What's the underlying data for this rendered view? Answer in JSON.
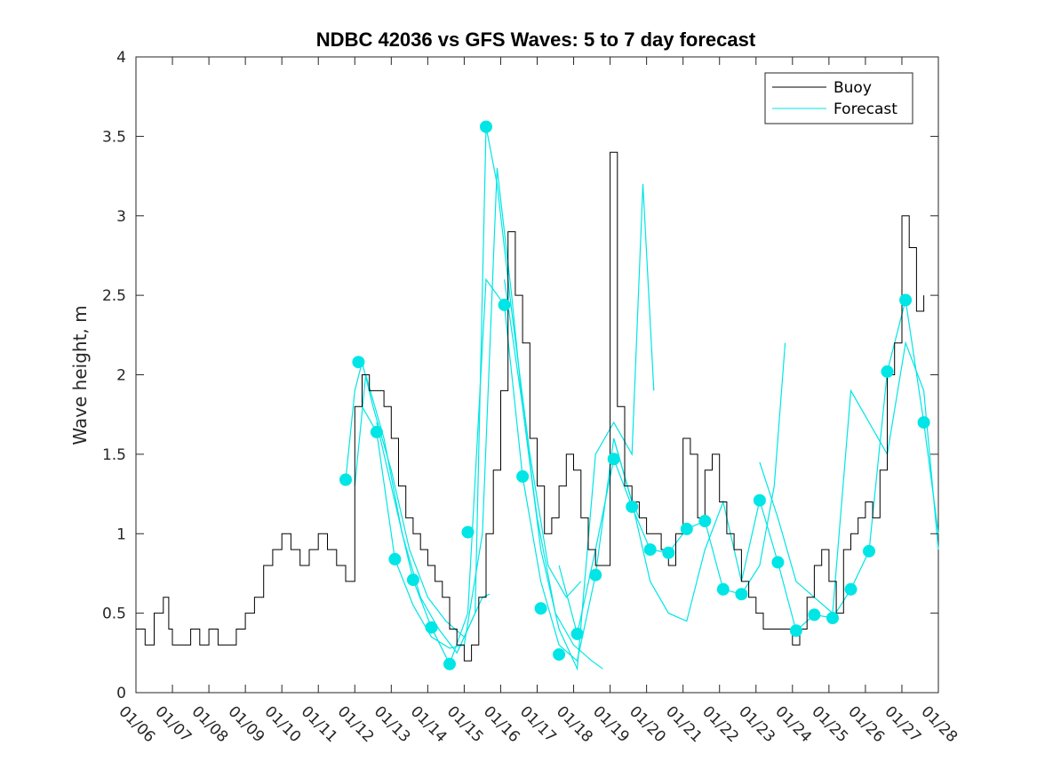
{
  "chart_data": {
    "type": "line",
    "title": "NDBC 42036 vs GFS Waves: 5 to 7 day forecast",
    "xlabel": "",
    "ylabel": "Wave height, m",
    "xlim": [
      0,
      22
    ],
    "ylim": [
      0,
      4
    ],
    "grid": false,
    "legend_position": "top-right",
    "x_tick_labels": [
      "01/06",
      "01/07",
      "01/08",
      "01/09",
      "01/10",
      "01/11",
      "01/12",
      "01/13",
      "01/14",
      "01/15",
      "01/16",
      "01/17",
      "01/18",
      "01/19",
      "01/20",
      "01/21",
      "01/22",
      "01/23",
      "01/24",
      "01/25",
      "01/26",
      "01/27",
      "01/28"
    ],
    "y_tick_labels": [
      "0",
      "0.5",
      "1",
      "1.5",
      "2",
      "2.5",
      "3",
      "3.5",
      "4"
    ],
    "y_ticks": [
      0,
      0.5,
      1,
      1.5,
      2,
      2.5,
      3,
      3.5,
      4
    ],
    "legend": [
      "Buoy",
      "Forecast"
    ],
    "colors": {
      "buoy": "#000000",
      "forecast": "#00e5e5",
      "marker": "#00e5e5"
    },
    "series": [
      {
        "name": "Buoy",
        "x": [
          0,
          0.25,
          0.5,
          0.75,
          0.9,
          1.0,
          1.25,
          1.5,
          1.75,
          2.0,
          2.25,
          2.5,
          2.75,
          3.0,
          3.25,
          3.5,
          3.75,
          4.0,
          4.25,
          4.5,
          4.75,
          5.0,
          5.25,
          5.5,
          5.75,
          6.0,
          6.2,
          6.4,
          6.6,
          6.8,
          7.0,
          7.2,
          7.4,
          7.6,
          7.8,
          8.0,
          8.2,
          8.4,
          8.6,
          8.8,
          9.0,
          9.2,
          9.4,
          9.6,
          9.8,
          10.0,
          10.2,
          10.4,
          10.6,
          10.8,
          11.0,
          11.2,
          11.4,
          11.6,
          11.8,
          12.0,
          12.2,
          12.4,
          12.6,
          12.8,
          13.0,
          13.2,
          13.4,
          13.6,
          13.8,
          14.0,
          14.2,
          14.4,
          14.6,
          14.8,
          15.0,
          15.2,
          15.4,
          15.6,
          15.8,
          16.0,
          16.2,
          16.4,
          16.6,
          16.8,
          17.0,
          17.2,
          17.4,
          17.6,
          17.8,
          18.0,
          18.2,
          18.4,
          18.6,
          18.8,
          19.0,
          19.2,
          19.4,
          19.6,
          19.8,
          20.0,
          20.2,
          20.4,
          20.6,
          20.8,
          21.0,
          21.2,
          21.4,
          21.6
        ],
        "values": [
          0.4,
          0.3,
          0.5,
          0.6,
          0.4,
          0.3,
          0.3,
          0.4,
          0.3,
          0.4,
          0.3,
          0.3,
          0.4,
          0.5,
          0.6,
          0.8,
          0.9,
          1.0,
          0.9,
          0.8,
          0.9,
          1.0,
          0.9,
          0.8,
          0.7,
          1.8,
          2.0,
          1.9,
          1.9,
          1.8,
          1.6,
          1.3,
          1.1,
          1.0,
          0.9,
          0.8,
          0.7,
          0.6,
          0.4,
          0.3,
          0.2,
          0.3,
          0.6,
          1.0,
          1.4,
          1.9,
          2.9,
          2.5,
          2.2,
          1.6,
          1.3,
          1.0,
          1.1,
          1.3,
          1.5,
          1.4,
          1.1,
          0.9,
          0.8,
          0.8,
          3.4,
          1.8,
          1.3,
          1.2,
          1.1,
          1.0,
          1.0,
          0.9,
          0.8,
          1.0,
          1.6,
          1.5,
          1.1,
          1.4,
          1.5,
          1.2,
          1.0,
          0.9,
          0.7,
          0.6,
          0.5,
          0.4,
          0.4,
          0.4,
          0.4,
          0.3,
          0.4,
          0.6,
          0.8,
          0.9,
          0.7,
          0.5,
          0.9,
          1.0,
          1.1,
          1.2,
          1.1,
          1.4,
          2.0,
          2.2,
          3.0,
          2.8,
          2.4,
          2.5
        ]
      },
      {
        "name": "Forecast",
        "markers": {
          "x": [
            5.75,
            6.1,
            6.6,
            7.1,
            7.6,
            8.1,
            8.6,
            9.1,
            9.6,
            10.1,
            10.6,
            11.1,
            11.6,
            12.1,
            12.6,
            13.1,
            13.6,
            14.1,
            14.6,
            15.1,
            15.6,
            16.1,
            16.6,
            17.1,
            17.6,
            18.1,
            18.6,
            19.1,
            19.6,
            20.1,
            20.6,
            21.1,
            21.6
          ],
          "values": [
            1.34,
            2.08,
            1.64,
            0.84,
            0.71,
            0.41,
            0.18,
            1.01,
            3.56,
            2.44,
            1.36,
            0.53,
            0.24,
            0.37,
            0.74,
            1.47,
            1.17,
            0.9,
            0.88,
            1.03,
            1.08,
            0.65,
            0.62,
            1.21,
            0.82,
            0.39,
            0.49,
            0.47,
            0.65,
            0.89,
            2.02,
            2.47,
            1.7
          ]
        },
        "traces": [
          {
            "x": [
              5.75,
              6.0,
              6.2,
              6.5,
              7.0,
              7.5,
              8.0,
              8.5,
              9.0,
              9.5,
              9.7
            ],
            "values": [
              1.34,
              1.9,
              2.08,
              1.8,
              1.4,
              0.9,
              0.6,
              0.45,
              0.35,
              0.6,
              0.62
            ]
          },
          {
            "x": [
              6.0,
              6.3,
              6.8,
              7.3,
              7.8,
              8.3,
              8.8,
              9.3,
              9.6,
              9.9,
              10.3,
              10.8,
              11.3,
              11.8,
              12.2
            ],
            "values": [
              1.3,
              2.0,
              1.6,
              1.0,
              0.6,
              0.4,
              0.25,
              0.5,
              3.56,
              3.2,
              2.4,
              1.5,
              0.8,
              0.6,
              0.7
            ]
          },
          {
            "x": [
              6.2,
              6.6,
              7.1,
              7.6,
              8.1,
              8.6,
              9.0,
              9.5,
              9.9,
              10.3,
              10.6,
              11.0,
              11.5,
              12.0,
              12.5,
              12.8
            ],
            "values": [
              1.8,
              1.64,
              0.84,
              0.55,
              0.35,
              0.28,
              0.3,
              1.0,
              3.3,
              2.5,
              1.8,
              1.1,
              0.5,
              0.3,
              0.2,
              0.15
            ]
          },
          {
            "x": [
              6.6,
              7.1,
              7.6,
              8.1,
              8.6,
              9.1,
              9.6,
              10.1,
              10.6,
              11.1,
              11.6,
              12.1,
              12.6,
              13.1,
              13.6,
              13.8
            ],
            "values": [
              1.7,
              1.2,
              0.71,
              0.41,
              0.18,
              0.5,
              2.6,
              2.44,
              1.36,
              0.7,
              0.3,
              0.2,
              0.74,
              1.6,
              1.2,
              1.1
            ]
          },
          {
            "x": [
              10.1,
              10.6,
              11.1,
              11.6,
              12.1,
              12.6,
              13.1,
              13.6,
              13.9,
              14.2
            ],
            "values": [
              2.6,
              1.8,
              0.9,
              0.4,
              0.15,
              1.5,
              1.7,
              1.5,
              3.2,
              1.9
            ]
          },
          {
            "x": [
              11.6,
              12.1,
              12.6,
              13.1,
              13.6,
              14.1,
              14.6,
              15.1,
              15.6,
              16.1,
              16.6,
              17.1,
              17.5,
              17.8
            ],
            "values": [
              0.8,
              0.37,
              0.9,
              1.47,
              1.17,
              0.9,
              0.88,
              1.03,
              1.08,
              0.65,
              0.62,
              0.8,
              1.3,
              2.2
            ]
          },
          {
            "x": [
              13.1,
              13.6,
              14.1,
              14.6,
              15.1,
              15.6,
              16.1,
              16.6,
              17.1,
              17.6,
              18.1,
              18.6,
              19.1,
              19.6,
              20.1,
              20.6,
              21.1,
              21.6,
              22.0
            ],
            "values": [
              1.6,
              1.2,
              0.7,
              0.5,
              0.45,
              0.9,
              1.2,
              0.7,
              1.21,
              0.82,
              0.39,
              0.49,
              0.47,
              0.65,
              0.89,
              2.02,
              2.47,
              1.7,
              1.0
            ]
          },
          {
            "x": [
              17.1,
              17.6,
              18.1,
              18.6,
              19.1,
              19.6,
              20.1,
              20.6,
              21.1,
              21.6,
              22.0
            ],
            "values": [
              1.45,
              1.1,
              0.7,
              0.6,
              0.5,
              1.9,
              1.7,
              1.5,
              2.2,
              1.9,
              0.9
            ]
          }
        ]
      }
    ]
  }
}
